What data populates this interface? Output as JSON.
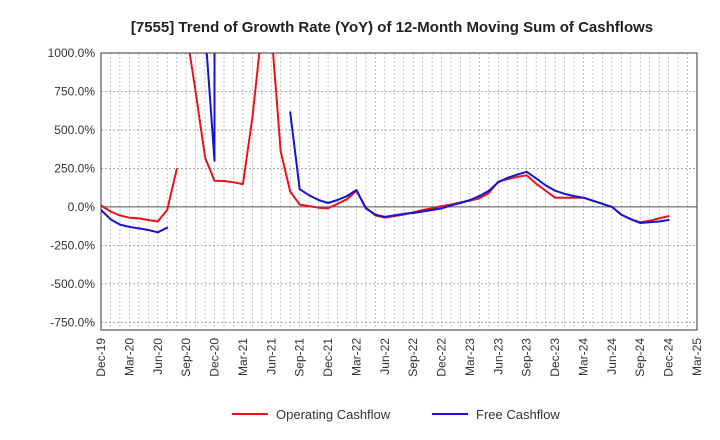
{
  "chart_data": {
    "type": "line",
    "title": "[7555]  Trend of Growth Rate (YoY) of 12-Month Moving Sum of Cashflows",
    "xlabel": "",
    "ylabel": "",
    "ylim": [
      -800,
      1000
    ],
    "y_ticks": [
      1000,
      750,
      500,
      250,
      0,
      -250,
      -500,
      -750
    ],
    "y_tick_labels": [
      "1000.0%",
      "750.0%",
      "500.0%",
      "250.0%",
      "0.0%",
      "-250.0%",
      "-500.0%",
      "-750.0%"
    ],
    "x_range": [
      "2019-12",
      "2025-03"
    ],
    "x_tick_labels": [
      "Dec-19",
      "Mar-20",
      "Jun-20",
      "Sep-20",
      "Dec-20",
      "Mar-21",
      "Jun-21",
      "Sep-21",
      "Dec-21",
      "Mar-22",
      "Jun-22",
      "Sep-22",
      "Dec-22",
      "Mar-23",
      "Jun-23",
      "Sep-23",
      "Dec-23",
      "Mar-24",
      "Jun-24",
      "Sep-24",
      "Dec-24",
      "Mar-25"
    ],
    "grid": true,
    "legend_position": "bottom",
    "series": [
      {
        "name": "Operating Cashflow",
        "color": "#e8141c",
        "points": [
          [
            "2019-12",
            10
          ],
          [
            "2020-01",
            -30
          ],
          [
            "2020-02",
            -55
          ],
          [
            "2020-03",
            -70
          ],
          [
            "2020-04",
            -75
          ],
          [
            "2020-05",
            -85
          ],
          [
            "2020-06",
            -95
          ],
          [
            "2020-07",
            -20
          ],
          [
            "2020-08",
            245
          ],
          null,
          [
            "2020-09",
            1200
          ],
          [
            "2020-10",
            750
          ],
          [
            "2020-11",
            320
          ],
          [
            "2020-12",
            170
          ],
          [
            "2021-01",
            168
          ],
          [
            "2021-02",
            160
          ],
          [
            "2021-03",
            148
          ],
          [
            "2021-04",
            580
          ],
          [
            "2021-05",
            1200
          ],
          null,
          [
            "2021-06",
            1200
          ],
          [
            "2021-07",
            360
          ],
          [
            "2021-08",
            100
          ],
          [
            "2021-09",
            15
          ],
          [
            "2021-10",
            5
          ],
          [
            "2021-11",
            -5
          ],
          [
            "2021-12",
            -10
          ],
          [
            "2022-01",
            20
          ],
          [
            "2022-02",
            50
          ],
          [
            "2022-03",
            105
          ],
          [
            "2022-04",
            -5
          ],
          [
            "2022-05",
            -55
          ],
          [
            "2022-06",
            -70
          ],
          [
            "2022-07",
            -60
          ],
          [
            "2022-08",
            -50
          ],
          [
            "2022-09",
            -35
          ],
          [
            "2022-10",
            -20
          ],
          [
            "2022-11",
            -10
          ],
          [
            "2022-12",
            5
          ],
          [
            "2023-01",
            15
          ],
          [
            "2023-02",
            30
          ],
          [
            "2023-03",
            40
          ],
          [
            "2023-04",
            55
          ],
          [
            "2023-05",
            90
          ],
          [
            "2023-06",
            165
          ],
          [
            "2023-07",
            180
          ],
          [
            "2023-08",
            195
          ],
          [
            "2023-09",
            205
          ],
          [
            "2023-10",
            150
          ],
          [
            "2023-11",
            105
          ],
          [
            "2023-12",
            60
          ],
          [
            "2024-01",
            60
          ],
          [
            "2024-02",
            60
          ],
          [
            "2024-03",
            60
          ],
          [
            "2024-04",
            40
          ],
          [
            "2024-05",
            20
          ],
          [
            "2024-06",
            0
          ],
          [
            "2024-07",
            -50
          ],
          [
            "2024-08",
            -80
          ],
          [
            "2024-09",
            -100
          ],
          [
            "2024-10",
            -90
          ],
          [
            "2024-11",
            -75
          ],
          [
            "2024-12",
            -60
          ]
        ]
      },
      {
        "name": "Free Cashflow",
        "color": "#1414d2",
        "points": [
          [
            "2019-12",
            -20
          ],
          [
            "2020-01",
            -80
          ],
          [
            "2020-02",
            -115
          ],
          [
            "2020-03",
            -130
          ],
          [
            "2020-04",
            -140
          ],
          [
            "2020-05",
            -150
          ],
          [
            "2020-06",
            -165
          ],
          [
            "2020-07",
            -135
          ],
          null,
          [
            "2020-11",
            1200
          ],
          [
            "2020-12",
            300
          ],
          [
            "2020-12",
            1200
          ],
          null,
          [
            "2021-08",
            615
          ],
          [
            "2021-09",
            115
          ],
          [
            "2021-10",
            75
          ],
          [
            "2021-11",
            45
          ],
          [
            "2021-12",
            25
          ],
          [
            "2022-01",
            45
          ],
          [
            "2022-02",
            70
          ],
          [
            "2022-03",
            110
          ],
          [
            "2022-04",
            -10
          ],
          [
            "2022-05",
            -50
          ],
          [
            "2022-06",
            -65
          ],
          [
            "2022-07",
            -55
          ],
          [
            "2022-08",
            -45
          ],
          [
            "2022-09",
            -40
          ],
          [
            "2022-10",
            -30
          ],
          [
            "2022-11",
            -20
          ],
          [
            "2022-12",
            -10
          ],
          [
            "2023-01",
            10
          ],
          [
            "2023-02",
            25
          ],
          [
            "2023-03",
            45
          ],
          [
            "2023-04",
            70
          ],
          [
            "2023-05",
            105
          ],
          [
            "2023-06",
            160
          ],
          [
            "2023-07",
            190
          ],
          [
            "2023-08",
            210
          ],
          [
            "2023-09",
            228
          ],
          [
            "2023-10",
            185
          ],
          [
            "2023-11",
            140
          ],
          [
            "2023-12",
            105
          ],
          [
            "2024-01",
            85
          ],
          [
            "2024-02",
            70
          ],
          [
            "2024-03",
            60
          ],
          [
            "2024-04",
            40
          ],
          [
            "2024-05",
            20
          ],
          [
            "2024-06",
            0
          ],
          [
            "2024-07",
            -50
          ],
          [
            "2024-08",
            -80
          ],
          [
            "2024-09",
            -105
          ],
          [
            "2024-10",
            -100
          ],
          [
            "2024-11",
            -95
          ],
          [
            "2024-12",
            -85
          ]
        ]
      }
    ]
  }
}
